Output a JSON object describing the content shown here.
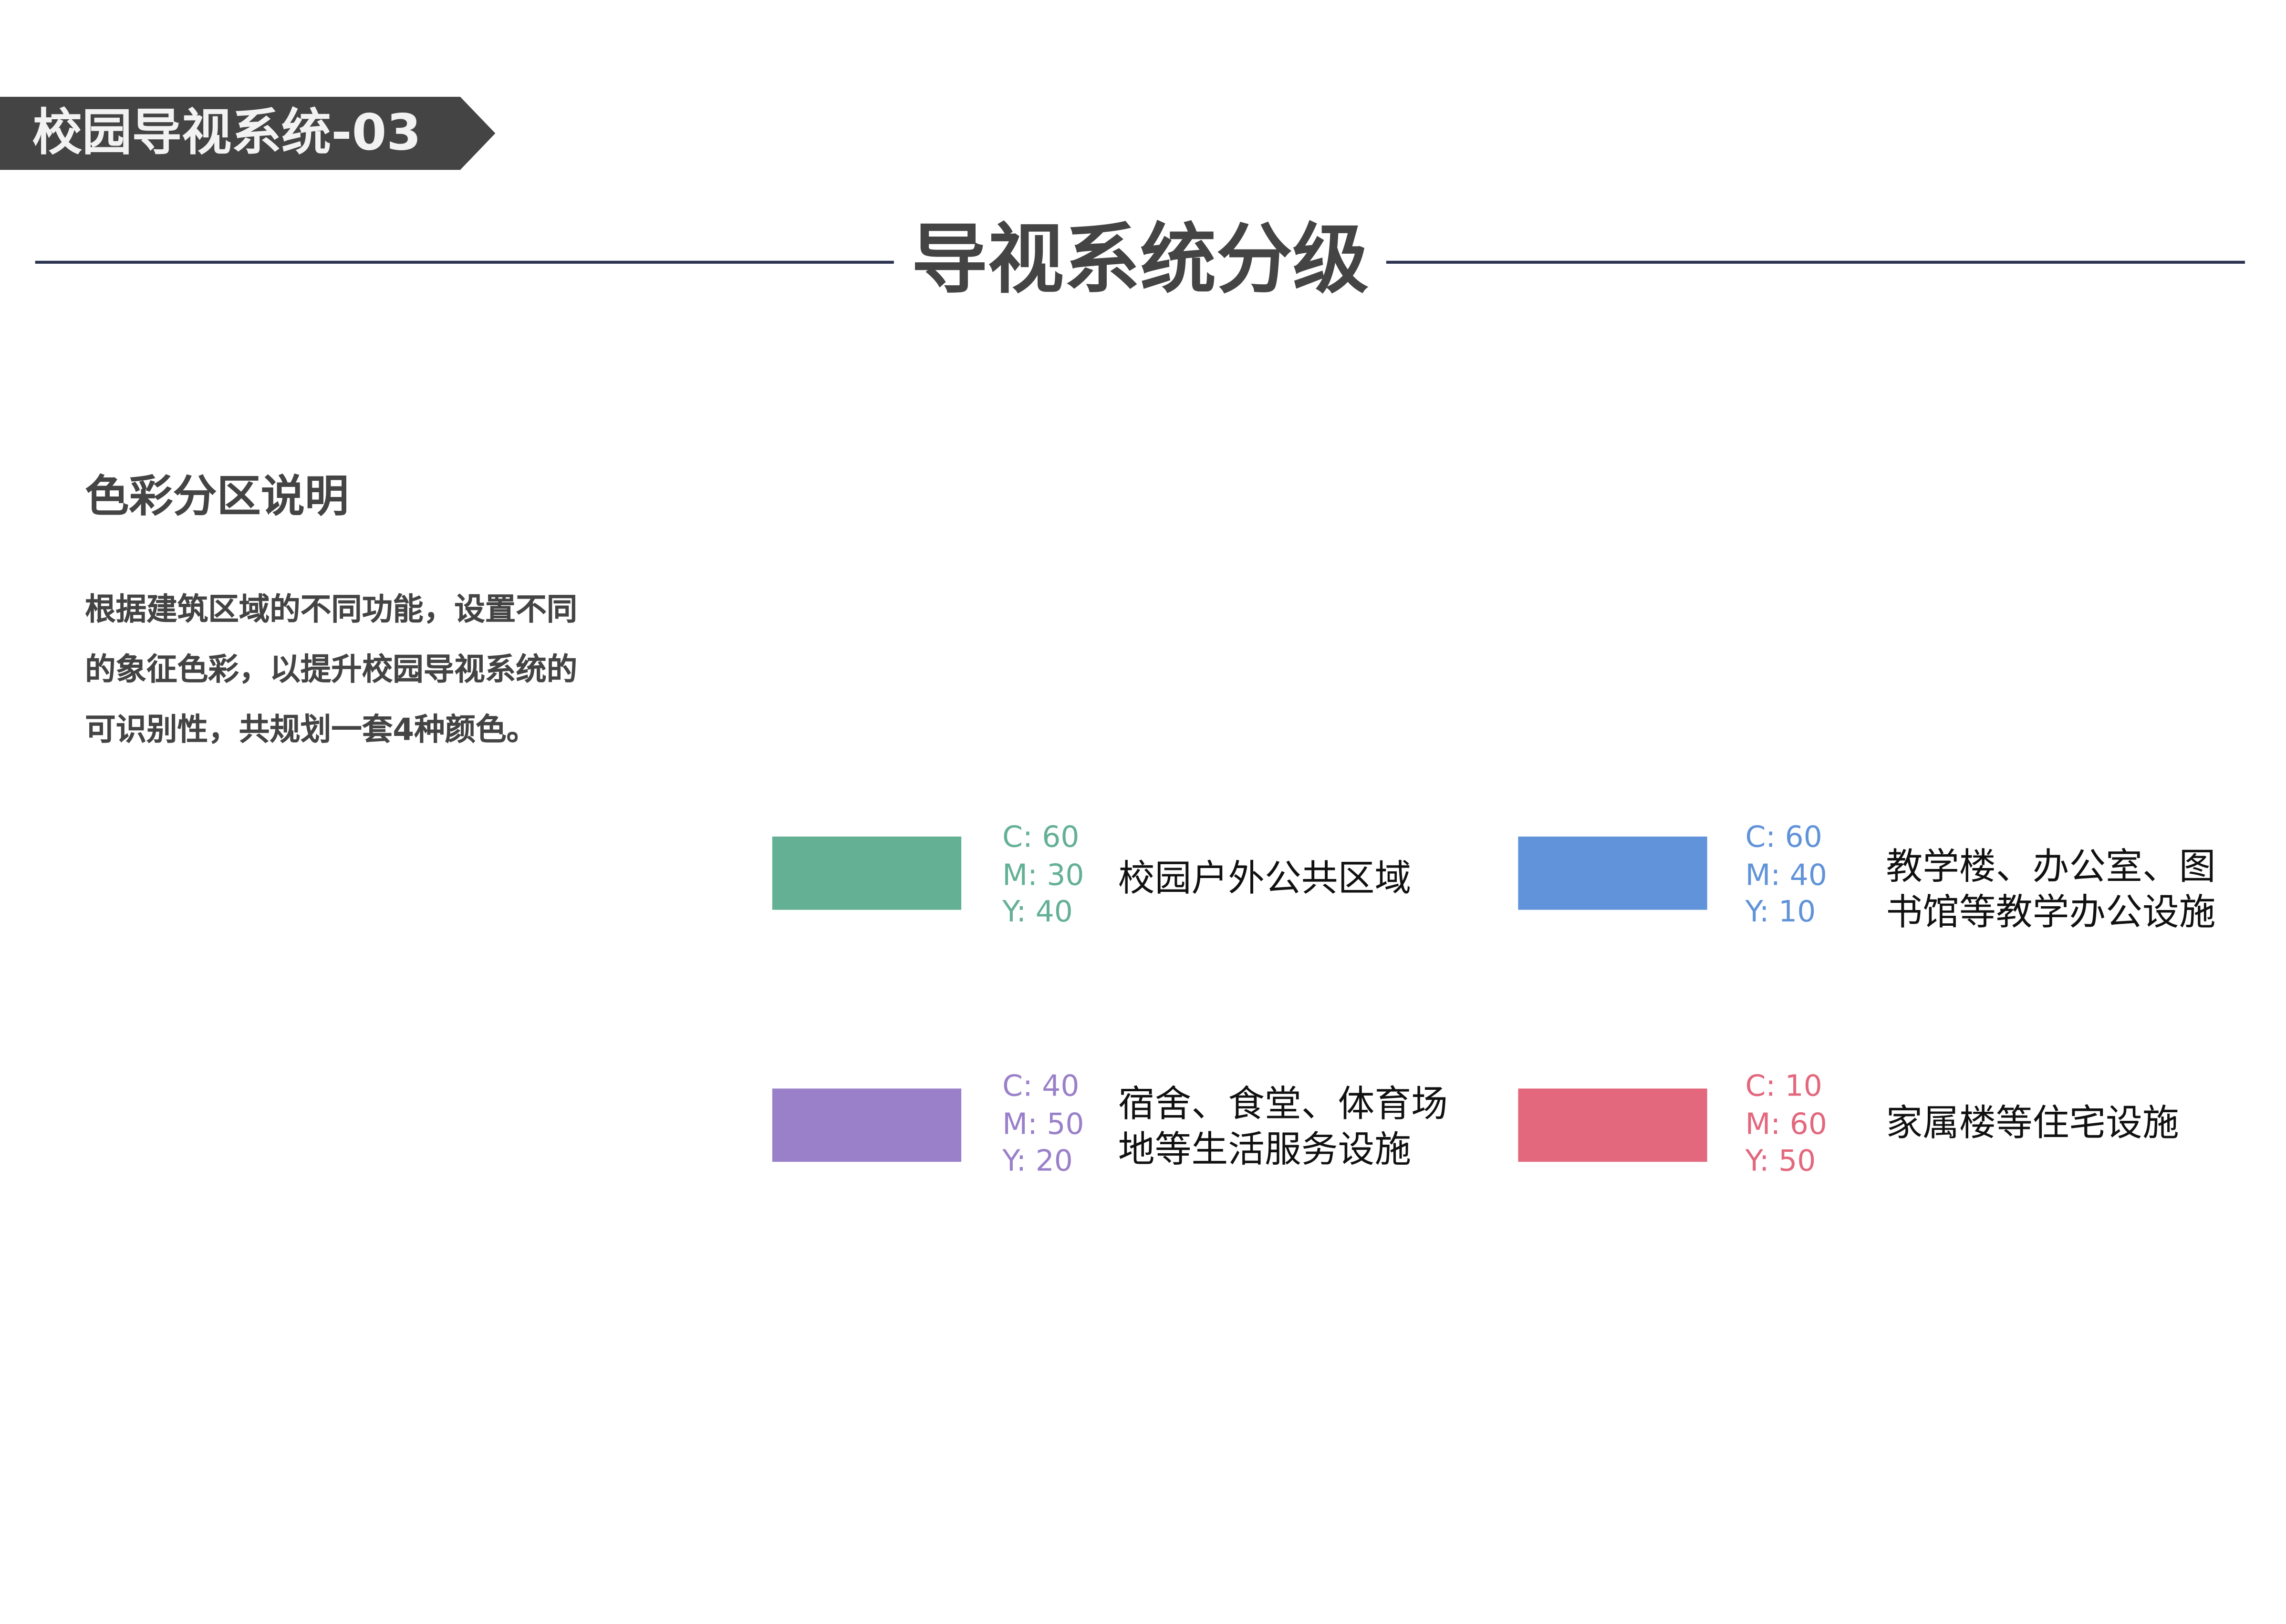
{
  "header": {
    "banner": "校园导视系统-03",
    "title": "导视系统分级"
  },
  "section": {
    "heading": "色彩分区说明",
    "description": "根据建筑区域的不同功能，设置不同的象征色彩，以提升校园导视系统的可识别性，共规划一套4种颜色。"
  },
  "zones": [
    {
      "color": "#64b095",
      "c": "C: 60",
      "m": "M: 30",
      "y": "Y: 40",
      "label": "校园户外公共区域"
    },
    {
      "color": "#6093d9",
      "c": "C: 60",
      "m": "M: 40",
      "y": "Y: 10",
      "label": "教学楼、办公室、图书馆等教学办公设施"
    },
    {
      "color": "#9a80c9",
      "c": "C: 40",
      "m": "M: 50",
      "y": "Y: 20",
      "label": "宿舍、食堂、体育场地等生活服务设施"
    },
    {
      "color": "#e3677d",
      "c": "C: 10",
      "m": "M: 60",
      "y": "Y: 50",
      "label": "家属楼等住宅设施"
    }
  ]
}
